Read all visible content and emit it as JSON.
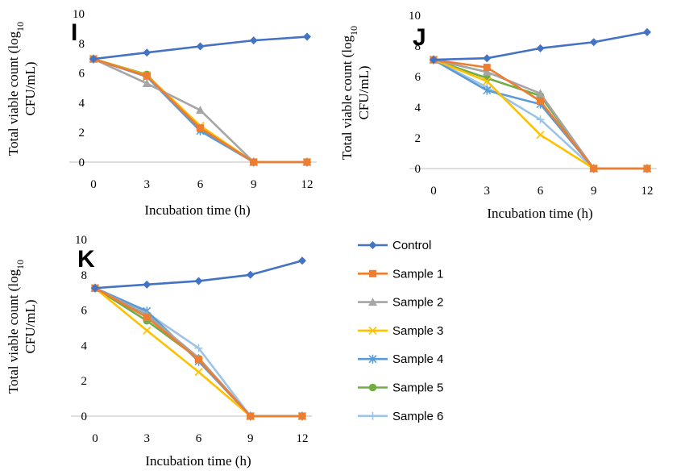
{
  "chart_data": [
    {
      "type": "line",
      "panel_label": "I",
      "x": [
        0,
        3,
        6,
        9,
        12
      ],
      "xlabel": "Incubation time (h)",
      "ylabel_main": "Total viable count (log",
      "ylabel_sub": "10",
      "ylabel_line2": "CFU/mL)",
      "ylim": [
        0,
        10
      ],
      "yticks": [
        0,
        2,
        4,
        6,
        8,
        10
      ],
      "grid": false,
      "series": [
        {
          "name": "Control",
          "values": [
            6.95,
            7.38,
            7.8,
            8.2,
            8.45
          ]
        },
        {
          "name": "Sample 1",
          "values": [
            6.95,
            5.8,
            2.3,
            0,
            0
          ]
        },
        {
          "name": "Sample 2",
          "values": [
            6.95,
            5.3,
            3.5,
            0,
            0
          ]
        },
        {
          "name": "Sample 3",
          "values": [
            6.95,
            5.85,
            2.45,
            0,
            0
          ]
        },
        {
          "name": "Sample 4",
          "values": [
            6.95,
            5.75,
            2.1,
            0,
            0
          ]
        },
        {
          "name": "Sample 5",
          "values": [
            6.95,
            5.9,
            2.2,
            0,
            0
          ]
        },
        {
          "name": "Sample 6",
          "values": [
            6.95,
            5.8,
            2.25,
            0,
            0
          ]
        }
      ]
    },
    {
      "type": "line",
      "panel_label": "J",
      "x": [
        0,
        3,
        6,
        9,
        12
      ],
      "xlabel": "Incubation time (h)",
      "ylabel_main": "Total viable count (log",
      "ylabel_sub": "10",
      "ylabel_line2": "CFU/mL)",
      "ylim": [
        0,
        10
      ],
      "yticks": [
        0,
        2,
        4,
        6,
        8,
        10
      ],
      "grid": false,
      "series": [
        {
          "name": "Control",
          "values": [
            7.1,
            7.2,
            7.85,
            8.25,
            8.9
          ]
        },
        {
          "name": "Sample 1",
          "values": [
            7.1,
            6.6,
            4.4,
            0,
            0
          ]
        },
        {
          "name": "Sample 2",
          "values": [
            7.1,
            6.3,
            4.9,
            0,
            0
          ]
        },
        {
          "name": "Sample 3",
          "values": [
            7.1,
            5.7,
            2.2,
            0,
            0
          ]
        },
        {
          "name": "Sample 4",
          "values": [
            7.1,
            5.1,
            4.2,
            0,
            0
          ]
        },
        {
          "name": "Sample 5",
          "values": [
            7.1,
            5.9,
            4.75,
            0,
            0
          ]
        },
        {
          "name": "Sample 6",
          "values": [
            7.1,
            5.3,
            3.2,
            0,
            0
          ]
        }
      ]
    },
    {
      "type": "line",
      "panel_label": "K",
      "x": [
        0,
        3,
        6,
        9,
        12
      ],
      "xlabel": "Incubation time (h)",
      "ylabel_main": "Total viable count (log",
      "ylabel_sub": "10",
      "ylabel_line2": "CFU/mL)",
      "ylim": [
        0,
        10
      ],
      "yticks": [
        0,
        2,
        4,
        6,
        8,
        10
      ],
      "grid": false,
      "series": [
        {
          "name": "Control",
          "values": [
            7.25,
            7.45,
            7.65,
            8.0,
            8.8
          ]
        },
        {
          "name": "Sample 1",
          "values": [
            7.25,
            5.6,
            3.2,
            0,
            0
          ]
        },
        {
          "name": "Sample 2",
          "values": [
            7.25,
            5.75,
            3.3,
            0,
            0
          ]
        },
        {
          "name": "Sample 3",
          "values": [
            7.25,
            4.85,
            2.5,
            0,
            0
          ]
        },
        {
          "name": "Sample 4",
          "values": [
            7.25,
            5.95,
            3.1,
            0,
            0
          ]
        },
        {
          "name": "Sample 5",
          "values": [
            7.25,
            5.4,
            3.25,
            0,
            0
          ]
        },
        {
          "name": "Sample 6",
          "values": [
            7.25,
            5.85,
            3.85,
            0,
            0
          ]
        }
      ]
    }
  ],
  "legend": {
    "placement": "bottom-right",
    "items": [
      {
        "name": "Control",
        "color": "#4472c4",
        "marker": "diamond"
      },
      {
        "name": "Sample 1",
        "color": "#ed7d31",
        "marker": "square"
      },
      {
        "name": "Sample 2",
        "color": "#a5a5a5",
        "marker": "triangle"
      },
      {
        "name": "Sample 3",
        "color": "#ffc000",
        "marker": "x"
      },
      {
        "name": "Sample 4",
        "color": "#5b9bd5",
        "marker": "star"
      },
      {
        "name": "Sample 5",
        "color": "#70ad47",
        "marker": "circle"
      },
      {
        "name": "Sample 6",
        "color": "#9dc3e6",
        "marker": "plus"
      }
    ]
  }
}
